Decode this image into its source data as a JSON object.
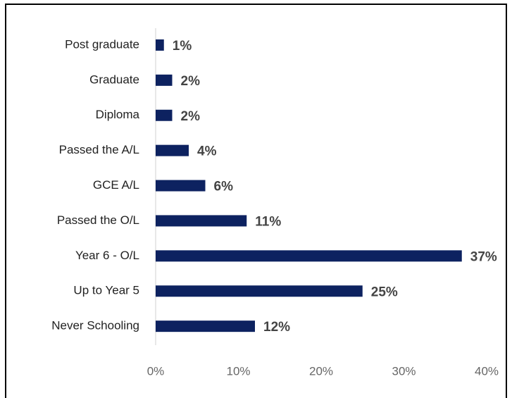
{
  "chart_data": {
    "type": "bar",
    "orientation": "horizontal",
    "categories": [
      "Post graduate",
      "Graduate",
      "Diploma",
      "Passed the A/L",
      "GCE A/L",
      "Passed the O/L",
      "Year 6 - O/L",
      "Up to Year 5",
      "Never Schooling"
    ],
    "values": [
      1,
      2,
      2,
      4,
      6,
      11,
      37,
      25,
      12
    ],
    "value_labels": [
      "1%",
      "2%",
      "2%",
      "4%",
      "6%",
      "11%",
      "37%",
      "25%",
      "12%"
    ],
    "color": "#0d2260",
    "xlim": [
      0,
      40
    ],
    "xticks": [
      {
        "value": 0,
        "label": "0%"
      },
      {
        "value": 10,
        "label": "10%"
      },
      {
        "value": 20,
        "label": "20%"
      },
      {
        "value": 30,
        "label": "30%"
      },
      {
        "value": 40,
        "label": "40%"
      }
    ],
    "grid": false
  }
}
